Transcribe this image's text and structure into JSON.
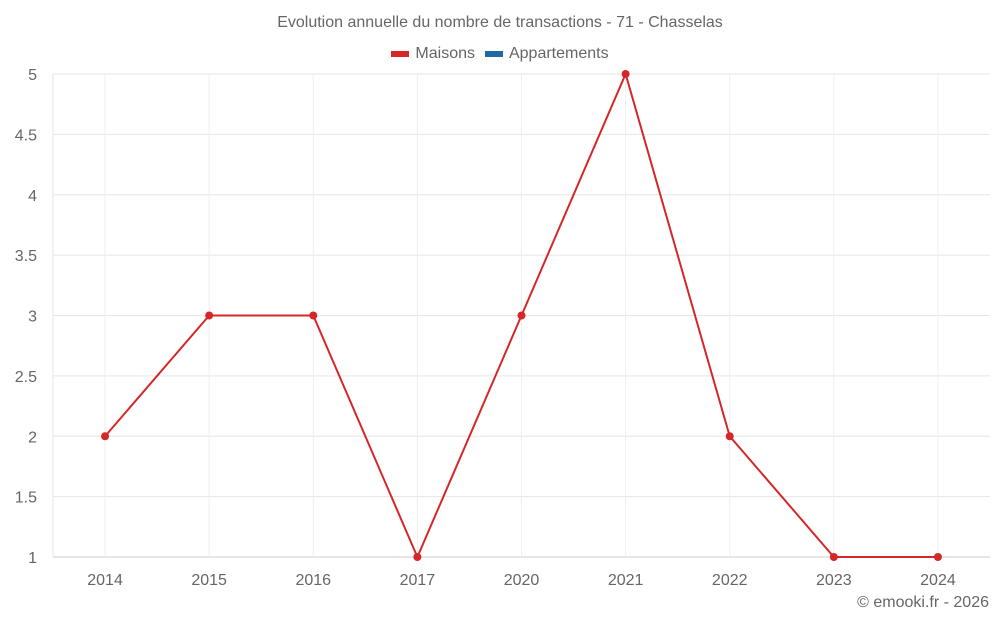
{
  "chart_data": {
    "type": "line",
    "title": "Evolution annuelle du nombre de transactions - 71 - Chasselas",
    "categories": [
      "2014",
      "2015",
      "2016",
      "2017",
      "2020",
      "2021",
      "2022",
      "2023",
      "2024"
    ],
    "series": [
      {
        "name": "Maisons",
        "color": "#d62728",
        "values": [
          2,
          3,
          3,
          1,
          3,
          5,
          2,
          1,
          1
        ]
      },
      {
        "name": "Appartements",
        "color": "#1f6aa5",
        "values": []
      }
    ],
    "xlabel": "",
    "ylabel": "",
    "ylim": [
      1,
      5
    ],
    "yticks": [
      "1",
      "1.5",
      "2",
      "2.5",
      "3",
      "3.5",
      "4",
      "4.5",
      "5"
    ],
    "grid": true,
    "legend_position": "top"
  },
  "credit": "© emooki.fr - 2026"
}
